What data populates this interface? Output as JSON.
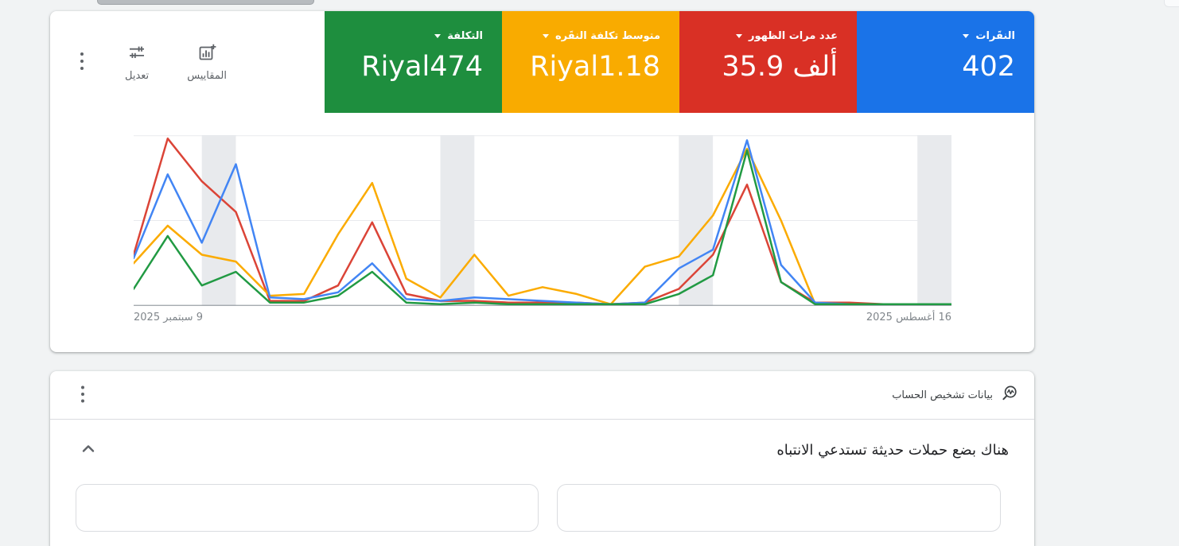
{
  "page": {
    "background": "#f1f3f4"
  },
  "summary_card": {
    "metrics": [
      {
        "id": "clicks",
        "label": "النقَرات",
        "value": "402",
        "color": "#1a73e8"
      },
      {
        "id": "impressions",
        "label": "عدد مرات الظهور",
        "value": "35.9 ألف",
        "color": "#d93025"
      },
      {
        "id": "avg_cpc",
        "label": "متوسط تكلفة النقَره",
        "value": "Riyal1.18",
        "color": "#f9ab00"
      },
      {
        "id": "cost",
        "label": "التكلفة",
        "value": "Riyal474",
        "color": "#1e8e3e"
      }
    ],
    "tools": {
      "metrics_label": "المقاييس",
      "edit_label": "تعديل"
    }
  },
  "chart_data": {
    "type": "line",
    "direction": "rtl",
    "x_axis": {
      "num_points": 25,
      "granularity": "daily",
      "start_label_right": "16 أغسطس 2025",
      "end_label_left": "9 سبتمبر 2025"
    },
    "y_axis": {
      "tick_labels_visible": false,
      "unit": "percent of plot height",
      "range": [
        0,
        100
      ]
    },
    "grid": {
      "y_gridlines_pct": [
        0,
        50,
        100
      ],
      "mid_color": "#e8eaed",
      "baseline_color": "#9aa0a6",
      "band_color": "#e8eaed"
    },
    "weekend_bands_days": [
      [
        0,
        1
      ],
      [
        7,
        8
      ],
      [
        14,
        15
      ],
      [
        21,
        22
      ]
    ],
    "series": [
      {
        "id": "clicks",
        "name": "النقَرات",
        "color": "#4285f4",
        "values": [
          1,
          1,
          1,
          1,
          2,
          24,
          97,
          33,
          22,
          2,
          1,
          2,
          3,
          4,
          5,
          3,
          4,
          25,
          8,
          4,
          5,
          83,
          37,
          77,
          28
        ]
      },
      {
        "id": "impressions",
        "name": "عدد مرات الظهور",
        "color": "#db4437",
        "values": [
          1,
          1,
          1,
          2,
          2,
          14,
          71,
          30,
          10,
          2,
          1,
          2,
          2,
          2,
          3,
          3,
          7,
          49,
          12,
          3,
          3,
          55,
          73,
          98,
          30
        ]
      },
      {
        "id": "avg_cpc",
        "name": "متوسط تكلفة النقَره",
        "color": "#fbab00",
        "values": [
          1,
          1,
          1,
          1,
          1,
          50,
          92,
          53,
          29,
          23,
          1,
          7,
          11,
          6,
          30,
          5,
          16,
          72,
          42,
          7,
          6,
          26,
          30,
          47,
          25
        ]
      },
      {
        "id": "cost",
        "name": "التكلفة",
        "color": "#219a43",
        "values": [
          1,
          1,
          1,
          1,
          1,
          14,
          91,
          18,
          7,
          1,
          1,
          1,
          1,
          1,
          2,
          1,
          2,
          20,
          6,
          2,
          2,
          20,
          12,
          41,
          10
        ]
      }
    ]
  },
  "diagnostics_card": {
    "title": "بيانات تشخيص الحساب",
    "headline": "هناك بضع حملات حديثة تستدعي الانتباه"
  }
}
